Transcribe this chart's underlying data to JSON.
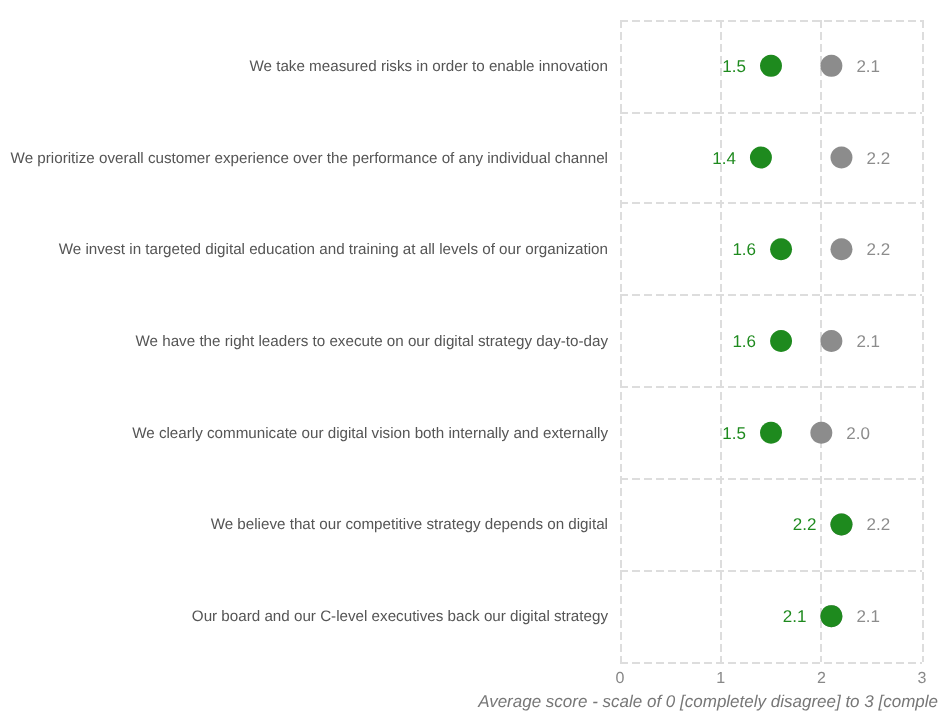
{
  "chart_data": {
    "type": "scatter",
    "orientation": "horizontal",
    "categories": [
      "We take measured risks in order to enable innovation",
      "We prioritize overall customer experience over the performance of any individual channel",
      "We invest in targeted digital education and training at all levels of our organization",
      "We have the right leaders to execute on our digital strategy day-to-day",
      "We clearly communicate our digital vision both internally and externally",
      "We believe that our competitive strategy depends on digital",
      "Our board and our C-level executives back our digital strategy"
    ],
    "series": [
      {
        "color": "#8c8c8c",
        "values": [
          2.1,
          2.2,
          2.2,
          2.1,
          2.0,
          2.2,
          2.1
        ],
        "value_labels": [
          "2.1",
          "2.2",
          "2.2",
          "2.1",
          "2.0",
          "2.2",
          "2.1"
        ]
      },
      {
        "color": "#1e8a1e",
        "values": [
          1.5,
          1.4,
          1.6,
          1.6,
          1.5,
          2.2,
          2.1
        ],
        "value_labels": [
          "1.5",
          "1.4",
          "1.6",
          "1.6",
          "1.5",
          "2.2",
          "2.1"
        ]
      }
    ],
    "xlim": [
      0,
      3
    ],
    "xticks": [
      0,
      1,
      2,
      3
    ],
    "xlabel": "Average score - scale of 0 [completely disagree] to 3 [comple",
    "grid": true,
    "marker": "circle"
  }
}
